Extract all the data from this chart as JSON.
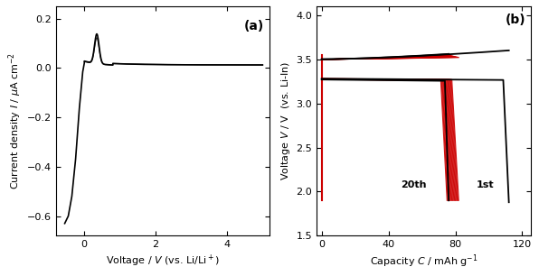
{
  "panel_a": {
    "label": "(a)",
    "xlim": [
      -0.8,
      5.2
    ],
    "ylim": [
      -0.68,
      0.25
    ],
    "xticks": [
      0,
      2,
      4
    ],
    "yticks": [
      -0.6,
      -0.4,
      -0.2,
      0.0,
      0.2
    ]
  },
  "panel_b": {
    "label": "(b)",
    "xlim": [
      -3,
      125
    ],
    "ylim": [
      1.5,
      4.1
    ],
    "xticks": [
      0,
      40,
      80,
      120
    ],
    "yticks": [
      1.5,
      2.0,
      2.5,
      3.0,
      3.5,
      4.0
    ]
  },
  "colors": {
    "black": "#000000",
    "red": "#cc0000"
  },
  "n_red": 18
}
